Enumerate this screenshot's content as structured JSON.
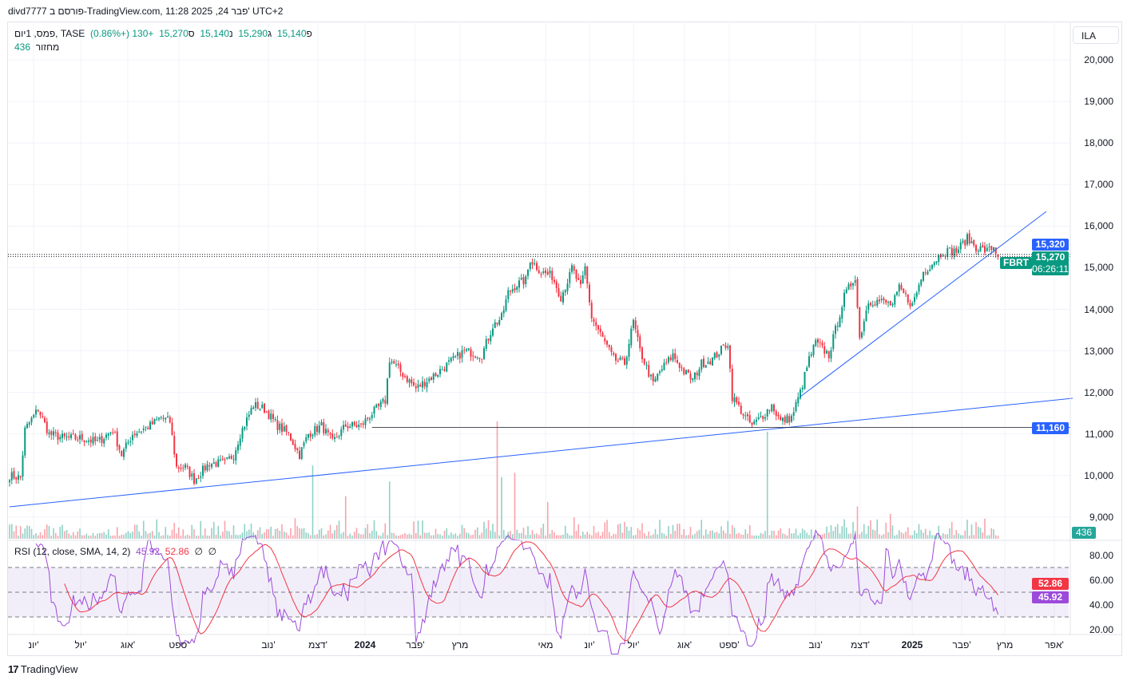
{
  "header": {
    "published": "divd7777 פורסם ב-TradingView.com, 11:28 2025 ,24 פבר' UTC+2",
    "symbol": "פמס, 1יום, TASE",
    "open_label": "פ",
    "open": "15,140",
    "high_label": "ג",
    "high": "15,290",
    "low_label": "נ",
    "low": "15,140",
    "close_label": "ס",
    "close": "15,270",
    "change": "+130 (+0.86%)",
    "volume_label": "מחזור",
    "volume": "436"
  },
  "currency_button": "ILA",
  "price_axis": [
    "20,000",
    "19,000",
    "18,000",
    "17,000",
    "16,000",
    "15,000",
    "14,000",
    "13,000",
    "12,000",
    "11,000",
    "10,000",
    "9,000"
  ],
  "price_tags": {
    "high_line": "15,320",
    "symbol": "FBRT",
    "last": "15,270",
    "countdown": "06:26:11",
    "support": "11,160",
    "volume": "436"
  },
  "rsi": {
    "label": "RSI (12, close, SMA, 14, 2)",
    "rsi_value": "45.92",
    "sma_value": "52.86",
    "extra1": "∅",
    "extra2": "∅",
    "axis": [
      "80.00",
      "60.00",
      "40.00",
      "20.00"
    ]
  },
  "time_axis": [
    {
      "label": "יונ'",
      "bold": false
    },
    {
      "label": "יול'",
      "bold": false
    },
    {
      "label": "אוג'",
      "bold": false
    },
    {
      "label": "ספט'",
      "bold": false
    },
    {
      "label": "נוב'",
      "bold": false
    },
    {
      "label": "דצמ'",
      "bold": false
    },
    {
      "label": "2024",
      "bold": true
    },
    {
      "label": "פבר'",
      "bold": false
    },
    {
      "label": "מרץ",
      "bold": false
    },
    {
      "label": "מאי",
      "bold": false
    },
    {
      "label": "יונ'",
      "bold": false
    },
    {
      "label": "יול'",
      "bold": false
    },
    {
      "label": "אוג'",
      "bold": false
    },
    {
      "label": "ספט'",
      "bold": false
    },
    {
      "label": "נוב'",
      "bold": false
    },
    {
      "label": "דצמ'",
      "bold": false
    },
    {
      "label": "2025",
      "bold": true
    },
    {
      "label": "פבר'",
      "bold": false
    },
    {
      "label": "מרץ",
      "bold": false
    },
    {
      "label": "אפר'",
      "bold": false
    }
  ],
  "footer": {
    "brand": "TradingView"
  },
  "colors": {
    "up": "#089981",
    "down": "#F23645",
    "rsi": "#9C4ADB",
    "rsi_sma": "#F23645",
    "trend": "#2962FF",
    "band": "#7E57C2"
  },
  "chart_data": {
    "type": "candlestick",
    "ylim": [
      8700,
      20500
    ],
    "price_anchors": [
      [
        0,
        10000
      ],
      [
        5,
        9950
      ],
      [
        7,
        11100
      ],
      [
        13,
        11600
      ],
      [
        18,
        11000
      ],
      [
        25,
        10900
      ],
      [
        33,
        10900
      ],
      [
        40,
        10800
      ],
      [
        47,
        11100
      ],
      [
        51,
        10500
      ],
      [
        56,
        11000
      ],
      [
        64,
        11200
      ],
      [
        69,
        11400
      ],
      [
        73,
        11300
      ],
      [
        76,
        10200
      ],
      [
        80,
        10200
      ],
      [
        84,
        9900
      ],
      [
        91,
        10300
      ],
      [
        98,
        10300
      ],
      [
        102,
        10500
      ],
      [
        105,
        11000
      ],
      [
        111,
        11700
      ],
      [
        116,
        11600
      ],
      [
        122,
        11200
      ],
      [
        127,
        11000
      ],
      [
        132,
        10500
      ],
      [
        136,
        11000
      ],
      [
        142,
        11200
      ],
      [
        147,
        10800
      ],
      [
        153,
        11200
      ],
      [
        160,
        11200
      ],
      [
        165,
        11500
      ],
      [
        171,
        11800
      ],
      [
        173,
        12800
      ],
      [
        178,
        12500
      ],
      [
        185,
        12100
      ],
      [
        193,
        12400
      ],
      [
        200,
        12700
      ],
      [
        207,
        13000
      ],
      [
        215,
        12900
      ],
      [
        220,
        13600
      ],
      [
        224,
        13800
      ],
      [
        227,
        14400
      ],
      [
        231,
        14600
      ],
      [
        235,
        14700
      ],
      [
        237,
        15200
      ],
      [
        242,
        14900
      ],
      [
        247,
        14800
      ],
      [
        251,
        14300
      ],
      [
        255,
        14800
      ],
      [
        256,
        15000
      ],
      [
        260,
        14500
      ],
      [
        262,
        15000
      ],
      [
        265,
        13800
      ],
      [
        271,
        13200
      ],
      [
        275,
        12800
      ],
      [
        280,
        12700
      ],
      [
        284,
        13700
      ],
      [
        287,
        13000
      ],
      [
        293,
        12200
      ],
      [
        296,
        12500
      ],
      [
        302,
        12900
      ],
      [
        307,
        12500
      ],
      [
        311,
        12300
      ],
      [
        315,
        12700
      ],
      [
        320,
        12800
      ],
      [
        327,
        13200
      ],
      [
        329,
        11900
      ],
      [
        335,
        11400
      ],
      [
        338,
        11200
      ],
      [
        344,
        11500
      ],
      [
        347,
        11700
      ],
      [
        351,
        11300
      ],
      [
        356,
        11400
      ],
      [
        360,
        12000
      ],
      [
        364,
        12800
      ],
      [
        367,
        13200
      ],
      [
        373,
        12900
      ],
      [
        376,
        13500
      ],
      [
        380,
        14300
      ],
      [
        385,
        14800
      ],
      [
        387,
        13300
      ],
      [
        391,
        14200
      ],
      [
        396,
        14200
      ],
      [
        402,
        14100
      ],
      [
        405,
        14500
      ],
      [
        411,
        14100
      ],
      [
        416,
        14900
      ],
      [
        420,
        15100
      ],
      [
        425,
        15400
      ],
      [
        431,
        15400
      ],
      [
        436,
        15700
      ],
      [
        440,
        15500
      ],
      [
        445,
        15400
      ],
      [
        448,
        15500
      ],
      [
        450,
        15270
      ]
    ],
    "volume_spikes": [
      [
        222,
        8000
      ],
      [
        224,
        4200
      ],
      [
        230,
        4500
      ],
      [
        345,
        7300
      ],
      [
        138,
        5000
      ],
      [
        173,
        3900
      ],
      [
        153,
        2900
      ],
      [
        386,
        2200
      ],
      [
        245,
        2500
      ],
      [
        401,
        1700
      ]
    ],
    "trend_lines": [
      {
        "from": [
          0,
          9249
        ],
        "to": [
          484,
          11860
        ]
      },
      {
        "from": [
          360,
          11899
        ],
        "to": [
          472,
          16352
        ]
      }
    ],
    "horizontal_line": {
      "price": 11160,
      "from": 165
    },
    "rsi_bands": [
      70,
      50,
      30
    ]
  }
}
